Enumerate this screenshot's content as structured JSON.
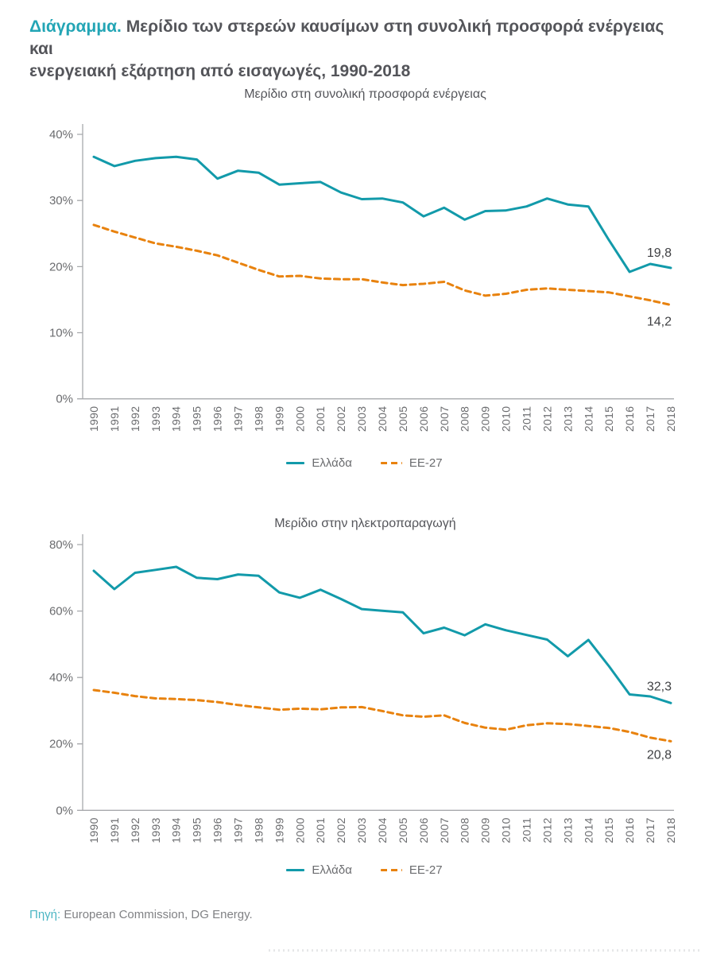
{
  "page": {
    "title_accent": "Διάγραμμα.",
    "title_line1": " Μερίδιο των στερεών καυσίμων στη συνολική προσφορά ενέργειας και",
    "title_line2": "ενεργειακή εξάρτηση από εισαγωγές, 1990-2018",
    "source_accent": "Πηγή:",
    "source_text": " European Commission, DG Energy."
  },
  "colors": {
    "greece": "#129AAA",
    "eu27": "#E8820E",
    "axis": "#A7A9AC",
    "accent": "#23A5B5",
    "text_dark": "#54555A",
    "text_gray": "#6B6C6F"
  },
  "legend": {
    "greece": "Ελλάδα",
    "eu27": "ΕΕ-27"
  },
  "chart_data": [
    {
      "type": "line",
      "title": "Μερίδιο στη συνολική προσφορά ενέργειας",
      "x": [
        "1990",
        "1991",
        "1992",
        "1993",
        "1994",
        "1995",
        "1996",
        "1997",
        "1998",
        "1999",
        "2000",
        "2001",
        "2002",
        "2003",
        "2004",
        "2005",
        "2006",
        "2007",
        "2008",
        "2009",
        "2010",
        "2011",
        "2012",
        "2013",
        "2014",
        "2015",
        "2016",
        "2017",
        "2018"
      ],
      "ylim": [
        0,
        40
      ],
      "yticks": [
        40,
        30,
        20,
        10,
        0
      ],
      "grid": false,
      "legend_position": "bottom",
      "series": [
        {
          "name": "Ελλάδα",
          "line_name": "greece-line",
          "color_key": "greece",
          "style": "solid",
          "end_label": "19,8",
          "values": [
            36.6,
            35.2,
            36.0,
            36.4,
            36.6,
            36.2,
            33.3,
            34.5,
            34.2,
            32.4,
            32.6,
            32.8,
            31.2,
            30.2,
            30.3,
            29.7,
            27.6,
            28.9,
            27.1,
            28.4,
            28.5,
            29.1,
            30.3,
            29.4,
            29.1,
            24.0,
            19.2,
            20.4,
            19.8
          ]
        },
        {
          "name": "ΕΕ-27",
          "line_name": "eu27-line",
          "color_key": "eu27",
          "style": "dashed",
          "end_label": "14,2",
          "values": [
            26.3,
            25.3,
            24.4,
            23.5,
            23.0,
            22.4,
            21.7,
            20.6,
            19.5,
            18.5,
            18.6,
            18.2,
            18.1,
            18.1,
            17.6,
            17.2,
            17.4,
            17.7,
            16.4,
            15.6,
            15.9,
            16.5,
            16.7,
            16.5,
            16.3,
            16.1,
            15.5,
            14.9,
            14.2
          ]
        }
      ]
    },
    {
      "type": "line",
      "title": "Μερίδιο στην ηλεκτροπαραγωγή",
      "x": [
        "1990",
        "1991",
        "1992",
        "1993",
        "1994",
        "1995",
        "1996",
        "1997",
        "1998",
        "1999",
        "2000",
        "2001",
        "2002",
        "2003",
        "2004",
        "2005",
        "2006",
        "2007",
        "2008",
        "2009",
        "2010",
        "2011",
        "2012",
        "2013",
        "2014",
        "2015",
        "2016",
        "2017",
        "2018"
      ],
      "ylim": [
        0,
        80
      ],
      "yticks": [
        80,
        60,
        40,
        20,
        0
      ],
      "grid": false,
      "legend_position": "bottom",
      "series": [
        {
          "name": "Ελλάδα",
          "line_name": "greece-line",
          "color_key": "greece",
          "style": "solid",
          "end_label": "32,3",
          "values": [
            72.1,
            66.6,
            71.5,
            72.4,
            73.3,
            70.0,
            69.6,
            71.0,
            70.6,
            65.6,
            64.0,
            66.4,
            63.6,
            60.6,
            60.1,
            59.6,
            53.3,
            55.0,
            52.7,
            56.0,
            54.2,
            52.8,
            51.4,
            46.4,
            51.3,
            43.4,
            34.9,
            34.3,
            32.3
          ]
        },
        {
          "name": "ΕΕ-27",
          "line_name": "eu27-line",
          "color_key": "eu27",
          "style": "dashed",
          "end_label": "20,8",
          "values": [
            36.2,
            35.4,
            34.4,
            33.7,
            33.5,
            33.2,
            32.6,
            31.7,
            31.0,
            30.3,
            30.6,
            30.4,
            31.0,
            31.1,
            29.9,
            28.6,
            28.2,
            28.6,
            26.3,
            24.9,
            24.3,
            25.6,
            26.2,
            26.0,
            25.4,
            24.8,
            23.6,
            21.9,
            20.8
          ]
        }
      ]
    }
  ]
}
